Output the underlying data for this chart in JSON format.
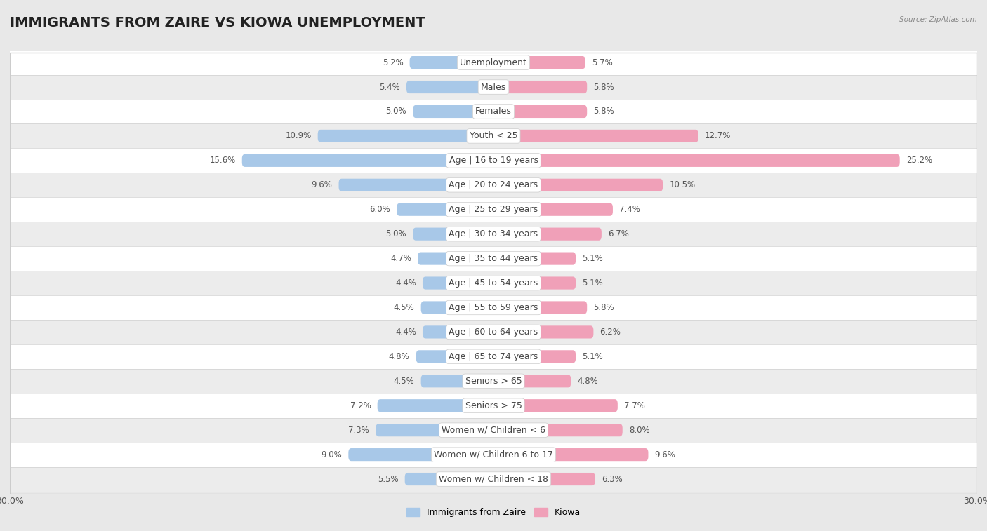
{
  "title": "IMMIGRANTS FROM ZAIRE VS KIOWA UNEMPLOYMENT",
  "source": "Source: ZipAtlas.com",
  "categories": [
    "Unemployment",
    "Males",
    "Females",
    "Youth < 25",
    "Age | 16 to 19 years",
    "Age | 20 to 24 years",
    "Age | 25 to 29 years",
    "Age | 30 to 34 years",
    "Age | 35 to 44 years",
    "Age | 45 to 54 years",
    "Age | 55 to 59 years",
    "Age | 60 to 64 years",
    "Age | 65 to 74 years",
    "Seniors > 65",
    "Seniors > 75",
    "Women w/ Children < 6",
    "Women w/ Children 6 to 17",
    "Women w/ Children < 18"
  ],
  "left_values": [
    5.2,
    5.4,
    5.0,
    10.9,
    15.6,
    9.6,
    6.0,
    5.0,
    4.7,
    4.4,
    4.5,
    4.4,
    4.8,
    4.5,
    7.2,
    7.3,
    9.0,
    5.5
  ],
  "right_values": [
    5.7,
    5.8,
    5.8,
    12.7,
    25.2,
    10.5,
    7.4,
    6.7,
    5.1,
    5.1,
    5.8,
    6.2,
    5.1,
    4.8,
    7.7,
    8.0,
    9.6,
    6.3
  ],
  "left_color": "#a8c8e8",
  "right_color": "#f0a0b8",
  "bar_height": 0.52,
  "xlim": 30.0,
  "fig_bg": "#e8e8e8",
  "row_bg_white": "#ffffff",
  "row_bg_gray": "#ececec",
  "row_line_color": "#d0d0d0",
  "legend_left": "Immigrants from Zaire",
  "legend_right": "Kiowa",
  "title_fontsize": 14,
  "label_fontsize": 9,
  "value_fontsize": 8.5,
  "axis_fontsize": 9
}
